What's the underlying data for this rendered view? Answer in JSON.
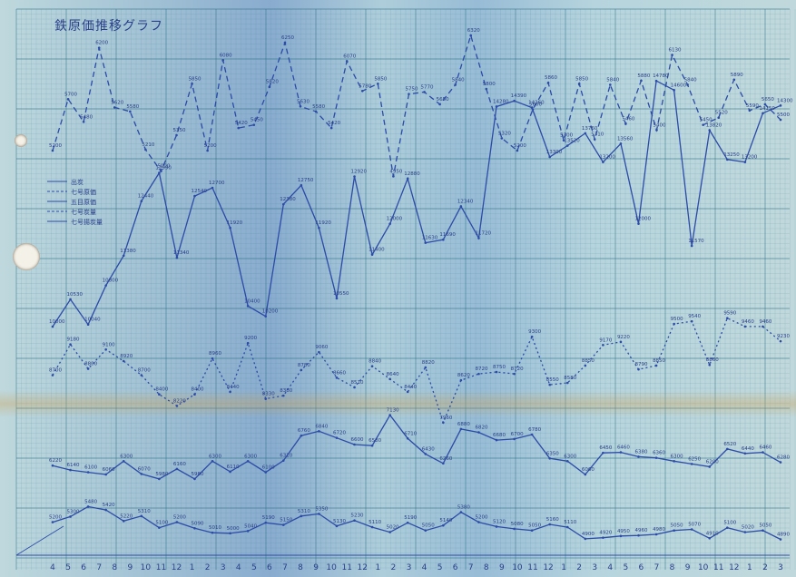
{
  "chart_data": {
    "type": "line",
    "title": "鉄原価推移グラフ",
    "legend": [
      "出炭",
      "七号原価",
      "五目原価",
      "七号炭量",
      "七号揚炭量"
    ],
    "legend_position": "left",
    "grid": true,
    "x_tick_labels": [
      "4",
      "5",
      "6",
      "7",
      "8",
      "9",
      "10",
      "11",
      "12",
      "1",
      "2",
      "3",
      "4",
      "5",
      "6",
      "7",
      "8",
      "9",
      "10",
      "11",
      "12",
      "1",
      "2",
      "3",
      "4",
      "5",
      "6",
      "7",
      "8",
      "9",
      "10",
      "11",
      "12",
      "1",
      "2",
      "3",
      "4",
      "5",
      "6",
      "7",
      "8",
      "9",
      "10",
      "11",
      "12",
      "1",
      "2",
      "3"
    ],
    "series": [
      {
        "color": "#2c4aa8",
        "dash": "6,4",
        "values": [
          5200,
          5700,
          5480,
          6200,
          5620,
          5580,
          5210,
          5000,
          5350,
          5850,
          5200,
          6080,
          5420,
          5450,
          5820,
          6250,
          5630,
          5580,
          5420,
          6070,
          5780,
          5850,
          4950,
          5750,
          5770,
          5650,
          5840,
          6320,
          5800,
          5320,
          5200,
          5600,
          5860,
          5300,
          5850,
          5310,
          5840,
          5460,
          5880,
          5400,
          6130,
          5840,
          5450,
          5520,
          5890,
          5590,
          5650,
          5500
        ]
      },
      {
        "color": "#2c4aa8",
        "dash": "",
        "values": [
          10000,
          10530,
          10040,
          10800,
          11380,
          12440,
          12990,
          11340,
          12540,
          12700,
          11920,
          10400,
          10200,
          12380,
          12750,
          11920,
          10550,
          12920,
          11400,
          12000,
          12880,
          11630,
          11690,
          12340,
          11720,
          14280,
          14390,
          14260,
          13300,
          13520,
          13760,
          13200,
          13560,
          12000,
          14780,
          14600,
          11570,
          13820,
          13250,
          13200,
          14150,
          14300
        ]
      },
      {
        "color": "#2c4aa8",
        "dash": "2,3",
        "values": [
          8700,
          9180,
          8800,
          9100,
          8920,
          8700,
          8400,
          8220,
          8400,
          8960,
          8440,
          9200,
          8330,
          8380,
          8780,
          9060,
          8660,
          8510,
          8840,
          8640,
          8440,
          8820,
          7960,
          8620,
          8720,
          8750,
          8720,
          9300,
          8550,
          8580,
          8850,
          9170,
          9220,
          8790,
          8850,
          9500,
          9540,
          8860,
          9590,
          9460,
          9460,
          9230
        ]
      },
      {
        "color": "#2c4aa8",
        "dash": "",
        "values": [
          5200,
          5300,
          5480,
          5420,
          5220,
          5310,
          5100,
          5200,
          5090,
          5010,
          5000,
          5040,
          5190,
          5150,
          5310,
          5350,
          5130,
          5230,
          5110,
          5020,
          5190,
          5050,
          5140,
          5380,
          5200,
          5120,
          5080,
          5050,
          5160,
          5110,
          4900,
          4920,
          4950,
          4960,
          4980,
          5050,
          5070,
          4910,
          5100,
          5020,
          5050,
          4890
        ]
      },
      {
        "color": "#2c4aa8",
        "dash": "",
        "values": [
          6220,
          6140,
          6100,
          6060,
          6300,
          6070,
          5980,
          6160,
          5980,
          6300,
          6110,
          6300,
          6100,
          6310,
          6760,
          6840,
          6720,
          6600,
          6580,
          7130,
          6710,
          6430,
          6260,
          6880,
          6820,
          6680,
          6700,
          6780,
          6350,
          6300,
          6060,
          6450,
          6460,
          6380,
          6360,
          6300,
          6250,
          6200,
          6520,
          6440,
          6460,
          6280
        ]
      }
    ],
    "ylim_left": [
      4000,
      12000
    ],
    "ylim_right": [
      10000,
      16000
    ]
  }
}
